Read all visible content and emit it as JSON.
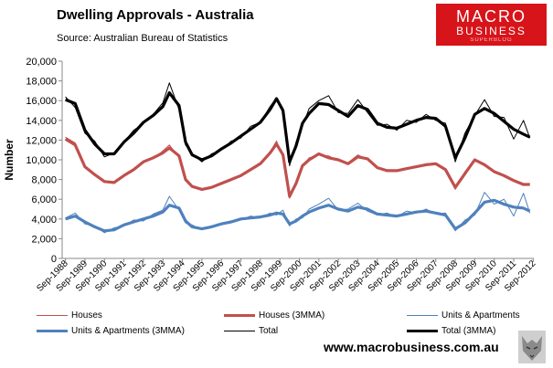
{
  "header": {
    "title": "Dwelling Approvals - Australia",
    "source": "Source:  Australian Bureau of Statistics",
    "logo_line1": "MACRO",
    "logo_line2": "BUSINESS",
    "logo_line3": "SUPERBLOG"
  },
  "footer": {
    "url": "www.macrobusiness.com.au"
  },
  "colors": {
    "houses": "#c0504d",
    "units": "#4f81bd",
    "total": "#000000"
  },
  "chart_data": {
    "type": "line",
    "title": "Dwelling Approvals - Australia",
    "xlabel": "",
    "ylabel": "Number",
    "ylim": [
      0,
      20000
    ],
    "yticks": [
      0,
      2000,
      4000,
      6000,
      8000,
      10000,
      12000,
      14000,
      16000,
      18000,
      20000
    ],
    "ytick_labels": [
      "0",
      "2,000",
      "4,000",
      "6,000",
      "8,000",
      "10,000",
      "12,000",
      "14,000",
      "16,000",
      "18,000",
      "20,000"
    ],
    "categories": [
      "Sep-1988",
      "Sep-1989",
      "Sep-1990",
      "Sep-1991",
      "Sep-1992",
      "Sep-1993",
      "Sep-1994",
      "Sep-1995",
      "Sep-1996",
      "Sep-1997",
      "Sep-1998",
      "Sep-1999",
      "Sep-2000",
      "Sep-2001",
      "Sep-2002",
      "Sep-2003",
      "Sep-2004",
      "Sep-2005",
      "Sep-2006",
      "Sep-2007",
      "Sep-2008",
      "Sep-2009",
      "Sep-2010",
      "Sep-2011",
      "Sep-2012"
    ],
    "x": [
      1988.67,
      1989.17,
      1989.67,
      1990.17,
      1990.67,
      1991.17,
      1991.67,
      1992.17,
      1992.67,
      1993.17,
      1993.67,
      1994.0,
      1994.5,
      1994.83,
      1995.17,
      1995.67,
      1996.17,
      1996.67,
      1997.17,
      1997.67,
      1998.17,
      1998.67,
      1999.17,
      1999.5,
      1999.83,
      2000.17,
      2000.5,
      2000.83,
      2001.17,
      2001.67,
      2002.17,
      2002.67,
      2003.17,
      2003.67,
      2004.17,
      2004.67,
      2005.17,
      2005.67,
      2006.17,
      2006.67,
      2007.17,
      2007.67,
      2008.17,
      2008.67,
      2009.17,
      2009.67,
      2010.17,
      2010.67,
      2011.17,
      2011.67,
      2012.17,
      2012.5
    ],
    "series": [
      {
        "name": "Houses (3MMA)",
        "color": "#c0504d",
        "width": 3.2,
        "values": [
          12100,
          11500,
          9300,
          8500,
          7800,
          7700,
          8400,
          9000,
          9800,
          10200,
          10700,
          11200,
          10400,
          8000,
          7300,
          7000,
          7200,
          7600,
          8000,
          8400,
          9000,
          9600,
          10700,
          11600,
          10500,
          6300,
          7600,
          9400,
          10000,
          10600,
          10200,
          10000,
          9600,
          10300,
          10100,
          9200,
          8900,
          8900,
          9100,
          9300,
          9500,
          9600,
          9000,
          7200,
          8600,
          10000,
          9500,
          8800,
          8400,
          7900,
          7500,
          7500
        ]
      },
      {
        "name": "Houses",
        "color": "#c0504d",
        "width": 1,
        "values": [
          12300,
          11700,
          9200,
          8600,
          7700,
          7600,
          8500,
          9100,
          9900,
          10100,
          10900,
          11500,
          10200,
          7900,
          7200,
          6900,
          7300,
          7500,
          8100,
          8300,
          9100,
          9700,
          10800,
          11900,
          10300,
          6100,
          7800,
          9300,
          10200,
          10500,
          10400,
          9900,
          9700,
          10500,
          10000,
          9100,
          9000,
          8800,
          9200,
          9200,
          9600,
          9500,
          9100,
          7000,
          8800,
          10100,
          9400,
          8900,
          8300,
          7800,
          7400,
          7600
        ]
      },
      {
        "name": "Units & Apartments (3MMA)",
        "color": "#4f81bd",
        "width": 3.2,
        "values": [
          4000,
          4300,
          3700,
          3200,
          2800,
          2900,
          3400,
          3700,
          4000,
          4300,
          4700,
          5400,
          5100,
          3800,
          3200,
          3000,
          3200,
          3500,
          3700,
          4000,
          4100,
          4200,
          4400,
          4600,
          4500,
          3500,
          3800,
          4300,
          4700,
          5100,
          5400,
          5000,
          4800,
          5200,
          5000,
          4500,
          4400,
          4300,
          4500,
          4700,
          4800,
          4600,
          4400,
          3000,
          3600,
          4600,
          5700,
          5900,
          5500,
          5200,
          5100,
          4800
        ]
      },
      {
        "name": "Units & Apartments",
        "color": "#4f81bd",
        "width": 1,
        "values": [
          4100,
          4600,
          3500,
          3300,
          2600,
          3100,
          3300,
          3900,
          3800,
          4500,
          4900,
          6300,
          4900,
          3600,
          3400,
          2900,
          3300,
          3400,
          3800,
          3900,
          4300,
          4100,
          4600,
          4400,
          4900,
          3300,
          4000,
          4100,
          5000,
          5500,
          6100,
          4900,
          5000,
          5600,
          4800,
          4400,
          4600,
          4200,
          4800,
          4600,
          5000,
          4500,
          4600,
          2800,
          3900,
          4400,
          6700,
          5500,
          6000,
          4300,
          6600,
          4600
        ]
      },
      {
        "name": "Total (3MMA)",
        "color": "#000000",
        "width": 3.2,
        "values": [
          16100,
          15700,
          13000,
          11600,
          10600,
          10600,
          11800,
          12700,
          13800,
          14500,
          15400,
          16800,
          15500,
          11800,
          10500,
          10000,
          10400,
          11100,
          11700,
          12400,
          13100,
          13800,
          15100,
          16200,
          15000,
          9800,
          11400,
          13700,
          14700,
          15700,
          15600,
          15000,
          14400,
          15500,
          15100,
          13700,
          13300,
          13200,
          13600,
          14000,
          14300,
          14200,
          13400,
          10200,
          12200,
          14600,
          15200,
          14700,
          13900,
          13100,
          12600,
          12300
        ]
      },
      {
        "name": "Total",
        "color": "#000000",
        "width": 1,
        "values": [
          16400,
          15300,
          12700,
          11900,
          10300,
          10700,
          11800,
          13000,
          13700,
          14600,
          15800,
          17800,
          15100,
          11500,
          10600,
          9800,
          10600,
          11000,
          11900,
          12200,
          13400,
          13800,
          15400,
          16300,
          15200,
          9400,
          11800,
          13400,
          15200,
          16000,
          16500,
          14800,
          14700,
          16100,
          14800,
          13500,
          13600,
          13000,
          14000,
          13800,
          14600,
          14000,
          13700,
          9800,
          12700,
          14500,
          16100,
          14400,
          14300,
          12100,
          14000,
          12200
        ]
      }
    ],
    "legend": [
      "Houses",
      "Houses (3MMA)",
      "Units & Apartments",
      "Units & Apartments (3MMA)",
      "Total",
      "Total (3MMA)"
    ],
    "legend_position": "bottom",
    "grid": false
  }
}
